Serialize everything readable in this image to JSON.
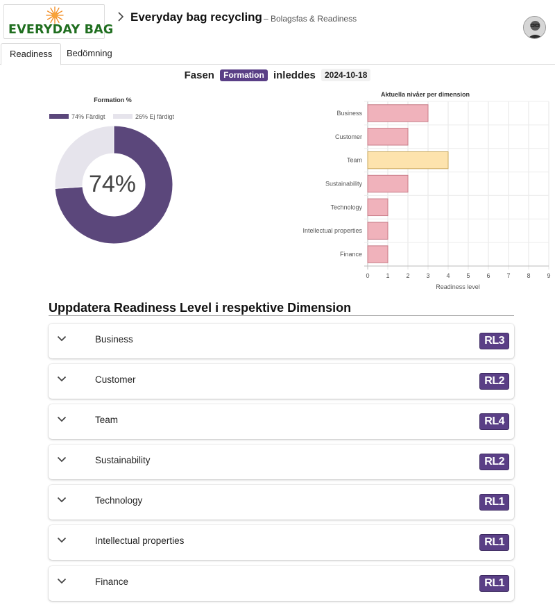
{
  "header": {
    "logo_text": "EVERYDAY BAG",
    "title": "Everyday bag recycling",
    "subtitle": "– Bolagsfas & Readiness",
    "colors": {
      "logo_green": "#1f6e1f",
      "logo_sun": "#f28a1e"
    }
  },
  "tabs": [
    {
      "label": "Readiness",
      "active": true
    },
    {
      "label": "Bedömning",
      "active": false
    }
  ],
  "phase": {
    "prefix": "Fasen",
    "badge": "Formation",
    "middle": "inleddes",
    "date": "2024-10-18"
  },
  "donut": {
    "title": "Formation %",
    "center_label": "74%",
    "legend": [
      {
        "label": "74% Färdigt",
        "value": 74,
        "color": "#5b477b"
      },
      {
        "label": "26% Ej färdigt",
        "value": 26,
        "color": "#e6e4ec"
      }
    ]
  },
  "chart_data": {
    "type": "bar",
    "orientation": "horizontal",
    "title": "Aktuella nivåer per dimension",
    "xlabel": "Readiness level",
    "ylabel": "",
    "categories": [
      "Business",
      "Customer",
      "Team",
      "Sustainability",
      "Technology",
      "Intellectual properties",
      "Finance"
    ],
    "values": [
      3,
      2,
      4,
      2,
      1,
      1,
      1
    ],
    "xlim": [
      0,
      9
    ],
    "ticks": [
      "0",
      "1",
      "2",
      "3",
      "4",
      "5",
      "6",
      "7",
      "8",
      "9"
    ],
    "grid": true,
    "colors": [
      "#f0b2bb",
      "#f0b2bb",
      "#fde3ad",
      "#f0b2bb",
      "#f0b2bb",
      "#f0b2bb",
      "#f0b2bb"
    ],
    "border_colors": [
      "#c77a86",
      "#c77a86",
      "#c9a75a",
      "#c77a86",
      "#c77a86",
      "#c77a86",
      "#c77a86"
    ]
  },
  "section": {
    "title": "Uppdatera Readiness Level i respektive Dimension"
  },
  "dimensions": [
    {
      "label": "Business",
      "rl": "RL3"
    },
    {
      "label": "Customer",
      "rl": "RL2"
    },
    {
      "label": "Team",
      "rl": "RL4"
    },
    {
      "label": "Sustainability",
      "rl": "RL2"
    },
    {
      "label": "Technology",
      "rl": "RL1"
    },
    {
      "label": "Intellectual properties",
      "rl": "RL1"
    },
    {
      "label": "Finance",
      "rl": "RL1"
    }
  ]
}
